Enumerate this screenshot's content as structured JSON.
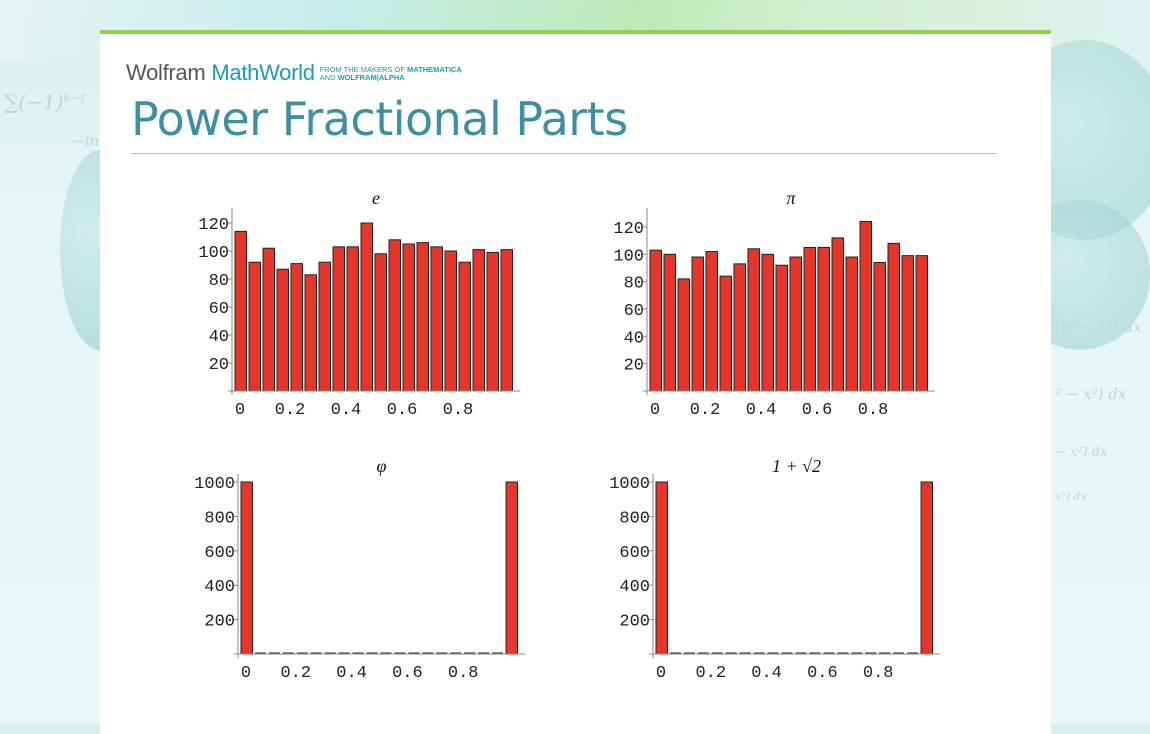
{
  "header": {
    "logo_wolfram": "Wolfram",
    "logo_mathworld": "MathWorld",
    "logo_tag_line1_prefix": "FROM THE MAKERS OF ",
    "logo_tag_line1_bold": "MATHEMATICA",
    "logo_tag_line2_prefix": "AND ",
    "logo_tag_line2_bold": "WOLFRAM|ALPHA",
    "page_title": "Power Fractional Parts"
  },
  "colors": {
    "bar_fill": "#e8352a",
    "title": "#3d8fa3",
    "accent_green": "#8ed44a",
    "brand_teal": "#1d9bb0"
  },
  "chart_data": [
    {
      "type": "bar",
      "title": "e",
      "xlabel": "",
      "ylabel": "",
      "x_ticks": [
        "0",
        "0.2",
        "0.4",
        "0.6",
        "0.8"
      ],
      "y_ticks": [
        "20",
        "40",
        "60",
        "80",
        "100",
        "120"
      ],
      "ylim": [
        0,
        125
      ],
      "bins": 20,
      "values": [
        114,
        92,
        102,
        87,
        91,
        83,
        92,
        103,
        103,
        120,
        98,
        108,
        105,
        106,
        103,
        100,
        92,
        101,
        99,
        101
      ]
    },
    {
      "type": "bar",
      "title": "π",
      "xlabel": "",
      "ylabel": "",
      "x_ticks": [
        "0",
        "0.2",
        "0.4",
        "0.6",
        "0.8"
      ],
      "y_ticks": [
        "20",
        "40",
        "60",
        "80",
        "100",
        "120"
      ],
      "ylim": [
        0,
        128
      ],
      "bins": 20,
      "values": [
        103,
        100,
        82,
        98,
        102,
        84,
        93,
        104,
        100,
        92,
        98,
        105,
        105,
        112,
        98,
        124,
        94,
        108,
        99,
        99
      ]
    },
    {
      "type": "bar",
      "title": "φ",
      "xlabel": "",
      "ylabel": "",
      "x_ticks": [
        "0",
        "0.2",
        "0.4",
        "0.6",
        "0.8"
      ],
      "y_ticks": [
        "200",
        "400",
        "600",
        "800",
        "1000"
      ],
      "ylim": [
        0,
        1000
      ],
      "bins": 20,
      "values": [
        1000,
        0,
        0,
        0,
        0,
        0,
        0,
        0,
        0,
        0,
        0,
        0,
        0,
        0,
        0,
        0,
        0,
        0,
        0,
        1000
      ]
    },
    {
      "type": "bar",
      "title": "1 + √2",
      "xlabel": "",
      "ylabel": "",
      "x_ticks": [
        "0",
        "0.2",
        "0.4",
        "0.6",
        "0.8"
      ],
      "y_ticks": [
        "200",
        "400",
        "600",
        "800",
        "1000"
      ],
      "ylim": [
        0,
        1000
      ],
      "bins": 20,
      "values": [
        1000,
        0,
        0,
        0,
        0,
        0,
        0,
        0,
        0,
        0,
        0,
        0,
        0,
        0,
        0,
        0,
        0,
        0,
        0,
        1000
      ]
    }
  ]
}
